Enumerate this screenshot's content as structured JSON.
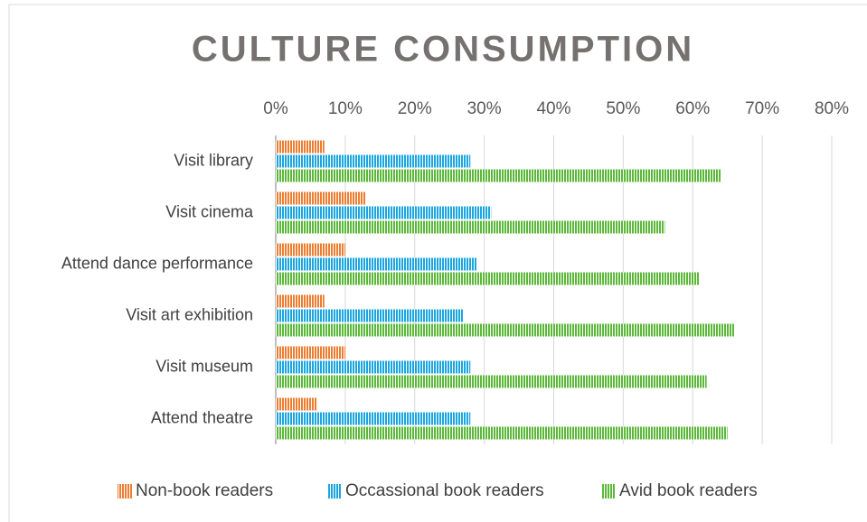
{
  "chart_data": {
    "type": "bar",
    "orientation": "horizontal",
    "title": "CULTURE CONSUMPTION",
    "categories": [
      "Visit library",
      "Visit cinema",
      "Attend dance performance",
      "Visit art exhibition",
      "Visit museum",
      "Attend theatre"
    ],
    "series": [
      {
        "name": "Non-book readers",
        "color": "#ed7d31",
        "values": [
          7,
          13,
          10,
          7,
          10,
          6
        ]
      },
      {
        "name": "Occassional book readers",
        "color": "#1ca6e0",
        "values": [
          28,
          31,
          29,
          27,
          28,
          28
        ]
      },
      {
        "name": "Avid book readers",
        "color": "#5cb83a",
        "values": [
          64,
          56,
          61,
          66,
          62,
          65
        ]
      }
    ],
    "xlim": [
      0,
      80
    ],
    "xticks": [
      {
        "value": 0,
        "label": "0%"
      },
      {
        "value": 10,
        "label": "10%"
      },
      {
        "value": 20,
        "label": "20%"
      },
      {
        "value": 30,
        "label": "30%"
      },
      {
        "value": 40,
        "label": "40%"
      },
      {
        "value": 50,
        "label": "50%"
      },
      {
        "value": 60,
        "label": "60%"
      },
      {
        "value": 70,
        "label": "70%"
      },
      {
        "value": 80,
        "label": "80%"
      }
    ],
    "grid": true,
    "legend": "bottom",
    "hatch": "vertical"
  }
}
